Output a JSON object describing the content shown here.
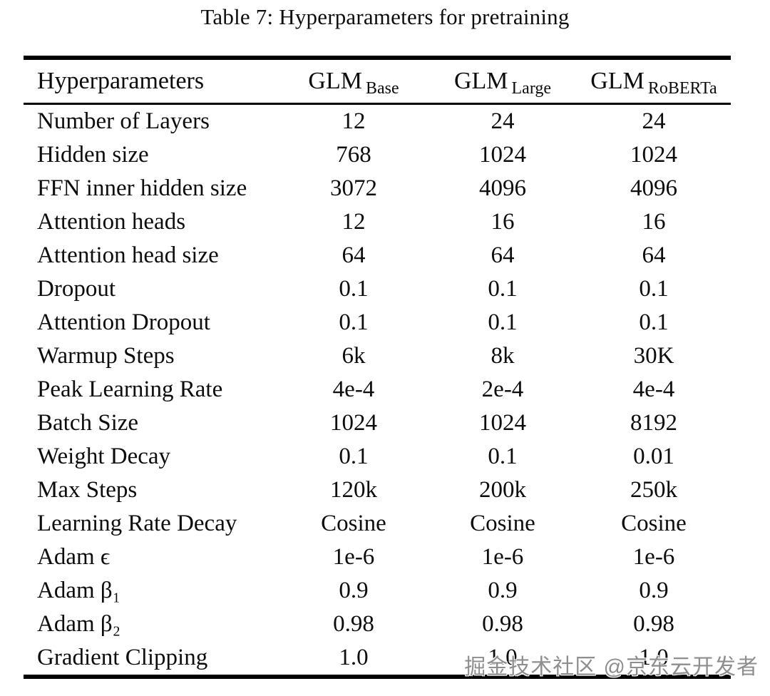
{
  "title": "Table 7: Hyperparameters for pretraining",
  "table": {
    "header": {
      "param_col": "Hyperparameters",
      "models": [
        {
          "name": "GLM",
          "sub": "Base"
        },
        {
          "name": "GLM",
          "sub": "Large"
        },
        {
          "name": "GLM",
          "sub": "RoBERTa"
        }
      ]
    },
    "rows": [
      {
        "label": "Number of Layers",
        "values": [
          "12",
          "24",
          "24"
        ]
      },
      {
        "label": "Hidden size",
        "values": [
          "768",
          "1024",
          "1024"
        ]
      },
      {
        "label": "FFN inner hidden size",
        "values": [
          "3072",
          "4096",
          "4096"
        ]
      },
      {
        "label": "Attention heads",
        "values": [
          "12",
          "16",
          "16"
        ]
      },
      {
        "label": "Attention head size",
        "values": [
          "64",
          "64",
          "64"
        ]
      },
      {
        "label": "Dropout",
        "values": [
          "0.1",
          "0.1",
          "0.1"
        ]
      },
      {
        "label": "Attention Dropout",
        "values": [
          "0.1",
          "0.1",
          "0.1"
        ]
      },
      {
        "label": "Warmup Steps",
        "values": [
          "6k",
          "8k",
          "30K"
        ]
      },
      {
        "label": "Peak Learning Rate",
        "values": [
          "4e-4",
          "2e-4",
          "4e-4"
        ]
      },
      {
        "label": "Batch Size",
        "values": [
          "1024",
          "1024",
          "8192"
        ]
      },
      {
        "label": "Weight Decay",
        "values": [
          "0.1",
          "0.1",
          "0.01"
        ]
      },
      {
        "label": "Max Steps",
        "values": [
          "120k",
          "200k",
          "250k"
        ]
      },
      {
        "label": "Learning Rate Decay",
        "values": [
          "Cosine",
          "Cosine",
          "Cosine"
        ]
      },
      {
        "label": "Adam ϵ",
        "values": [
          "1e-6",
          "1e-6",
          "1e-6"
        ]
      },
      {
        "label": "Adam β₁",
        "values": [
          "0.9",
          "0.9",
          "0.9"
        ]
      },
      {
        "label": "Adam β₂",
        "values": [
          "0.98",
          "0.98",
          "0.98"
        ]
      },
      {
        "label": "Gradient Clipping",
        "values": [
          "1.0",
          "1.0",
          "1.0"
        ]
      }
    ]
  },
  "watermark": "掘金技术社区 @京东云开发者",
  "colors": {
    "background": "#ffffff",
    "text": "#0d0d0d",
    "rule": "#000000",
    "watermark": "#8e8e8e"
  }
}
